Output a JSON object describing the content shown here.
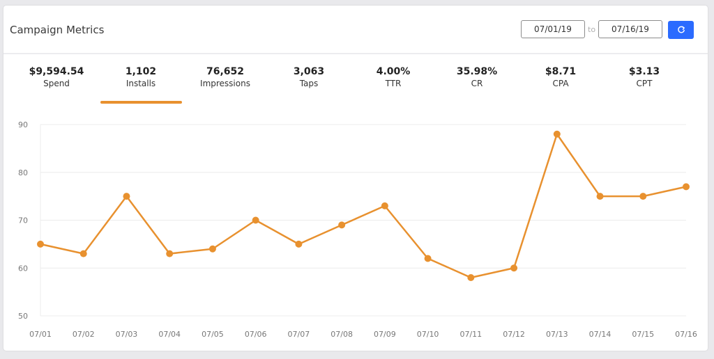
{
  "header": {
    "title": "Campaign Metrics",
    "date_from": "07/01/19",
    "to_label": "to",
    "date_to": "07/16/19",
    "refresh_icon": "refresh-icon"
  },
  "metrics": [
    {
      "value": "$9,594.54",
      "label": "Spend"
    },
    {
      "value": "1,102",
      "label": "Installs",
      "selected": true
    },
    {
      "value": "76,652",
      "label": "Impressions"
    },
    {
      "value": "3,063",
      "label": "Taps"
    },
    {
      "value": "4.00%",
      "label": "TTR"
    },
    {
      "value": "35.98%",
      "label": "CR"
    },
    {
      "value": "$8.71",
      "label": "CPA"
    },
    {
      "value": "$3.13",
      "label": "CPT"
    }
  ],
  "colors": {
    "accent": "#e8912f",
    "button": "#2b6bff",
    "grid": "#ececec"
  },
  "chart_data": {
    "type": "line",
    "categories": [
      "07/01",
      "07/02",
      "07/03",
      "07/04",
      "07/05",
      "07/06",
      "07/07",
      "07/08",
      "07/09",
      "07/10",
      "07/11",
      "07/12",
      "07/13",
      "07/14",
      "07/15",
      "07/16"
    ],
    "series": [
      {
        "values": [
          65,
          63,
          75,
          63,
          64,
          70,
          65,
          69,
          73,
          62,
          58,
          60,
          88,
          75,
          75,
          77
        ]
      }
    ],
    "ylim": [
      50,
      90
    ],
    "yticks": [
      90,
      80,
      70,
      60,
      50
    ],
    "grid": true,
    "title": "",
    "xlabel": "",
    "ylabel": ""
  }
}
